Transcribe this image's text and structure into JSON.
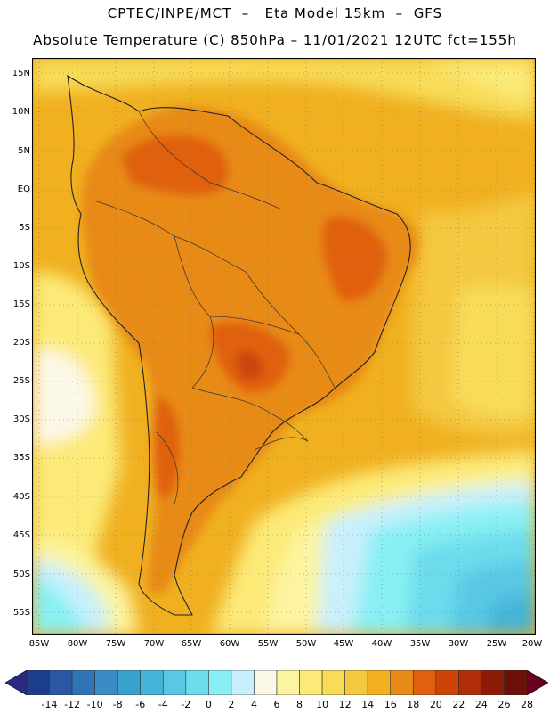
{
  "header": {
    "line1": "CPTEC/INPE/MCT  –   Eta Model 15km  –  GFS",
    "line2": "Absolute Temperature (C) 850hPa – 11/01/2021 12UTC fct=155h"
  },
  "map": {
    "region": "South America",
    "lat_labels": [
      "15N",
      "10N",
      "5N",
      "EQ",
      "5S",
      "10S",
      "15S",
      "20S",
      "25S",
      "30S",
      "35S",
      "40S",
      "45S",
      "50S",
      "55S"
    ],
    "lon_labels": [
      "85W",
      "80W",
      "75W",
      "70W",
      "65W",
      "60W",
      "55W",
      "50W",
      "45W",
      "40W",
      "35W",
      "30W",
      "25W",
      "20W"
    ]
  },
  "colorbar": {
    "labels": [
      "-14",
      "-12",
      "-10",
      "-8",
      "-6",
      "-4",
      "-2",
      "0",
      "2",
      "4",
      "6",
      "8",
      "10",
      "12",
      "14",
      "16",
      "18",
      "20",
      "22",
      "24",
      "26",
      "28"
    ],
    "colors": [
      "#1c3c8c",
      "#2a58a4",
      "#2f74b4",
      "#3a8cc4",
      "#3aa0cc",
      "#44b4d8",
      "#58c8e4",
      "#6cdcec",
      "#88f0f4",
      "#c8f0fc",
      "#fcf8e8",
      "#fcf4a0",
      "#fcea78",
      "#f8dc58",
      "#f4c840",
      "#f0b020",
      "#e88a18",
      "#e06010",
      "#cc4408",
      "#b02e08",
      "#8c1c08",
      "#6c1008"
    ],
    "low_arrow": "#2a2a80",
    "high_arrow": "#6a0020"
  }
}
